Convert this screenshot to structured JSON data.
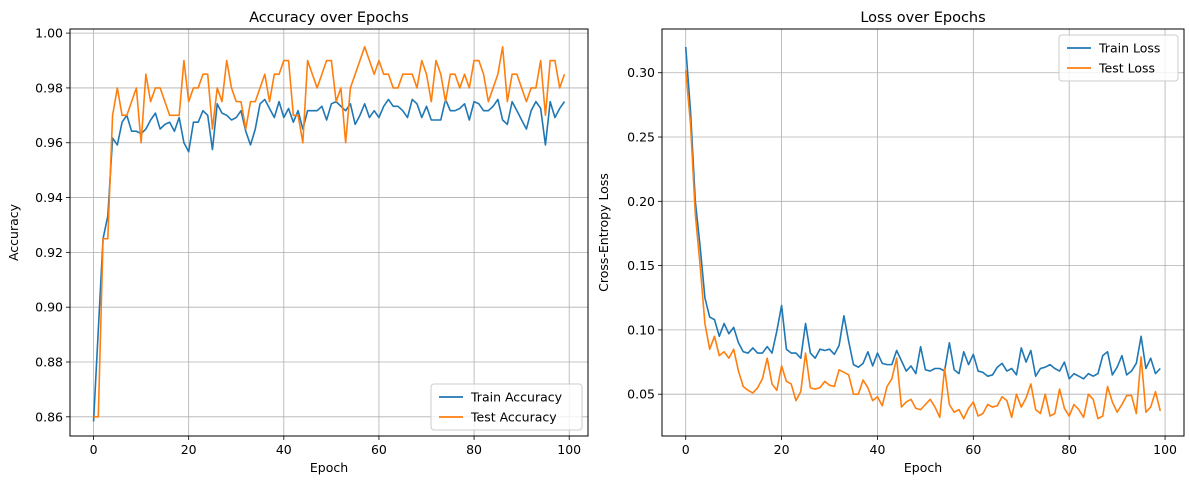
{
  "chart_data": [
    {
      "id": "accuracy",
      "type": "line",
      "title": "Accuracy over Epochs",
      "xlabel": "Epoch",
      "ylabel": "Accuracy",
      "xlim": [
        -4.95,
        103.95
      ],
      "ylim": [
        0.853,
        1.0015
      ],
      "xticks": [
        0,
        20,
        40,
        60,
        80,
        100
      ],
      "yticks": [
        0.86,
        0.88,
        0.9,
        0.92,
        0.94,
        0.96,
        0.98,
        1.0
      ],
      "ytick_labels": [
        "0.86",
        "0.88",
        "0.90",
        "0.92",
        "0.94",
        "0.96",
        "0.98",
        "1.00"
      ],
      "grid": true,
      "legend_position": "lower-right",
      "series": [
        {
          "name": "Train Accuracy",
          "color": "#1f77b4",
          "values": [
            0.8583,
            0.8917,
            0.925,
            0.9333,
            0.9617,
            0.9592,
            0.9675,
            0.97,
            0.9642,
            0.9642,
            0.9633,
            0.965,
            0.9683,
            0.9708,
            0.965,
            0.9667,
            0.9675,
            0.9642,
            0.9692,
            0.96,
            0.9567,
            0.9675,
            0.9675,
            0.9717,
            0.97,
            0.9575,
            0.9742,
            0.9708,
            0.97,
            0.9683,
            0.9692,
            0.9717,
            0.9642,
            0.9592,
            0.965,
            0.9742,
            0.9758,
            0.9725,
            0.9692,
            0.975,
            0.9692,
            0.9725,
            0.9675,
            0.9717,
            0.965,
            0.9717,
            0.9717,
            0.9717,
            0.9733,
            0.9683,
            0.9742,
            0.975,
            0.9733,
            0.9717,
            0.9742,
            0.9667,
            0.97,
            0.9742,
            0.9692,
            0.9717,
            0.9692,
            0.9733,
            0.9758,
            0.9733,
            0.9733,
            0.9717,
            0.9692,
            0.9758,
            0.9742,
            0.9692,
            0.9733,
            0.9683,
            0.9683,
            0.9683,
            0.9758,
            0.9717,
            0.9717,
            0.9725,
            0.9742,
            0.9683,
            0.975,
            0.9742,
            0.9717,
            0.9717,
            0.9733,
            0.9758,
            0.9683,
            0.9667,
            0.975,
            0.9717,
            0.9683,
            0.965,
            0.9717,
            0.975,
            0.9725,
            0.9592,
            0.975,
            0.9692,
            0.9725,
            0.975
          ]
        },
        {
          "name": "Test Accuracy",
          "color": "#ff7f0e",
          "values": [
            0.86,
            0.86,
            0.925,
            0.925,
            0.97,
            0.98,
            0.97,
            0.97,
            0.975,
            0.98,
            0.96,
            0.985,
            0.975,
            0.98,
            0.98,
            0.975,
            0.97,
            0.97,
            0.97,
            0.99,
            0.975,
            0.98,
            0.98,
            0.985,
            0.985,
            0.965,
            0.98,
            0.975,
            0.99,
            0.98,
            0.975,
            0.975,
            0.965,
            0.975,
            0.975,
            0.98,
            0.985,
            0.975,
            0.985,
            0.985,
            0.99,
            0.99,
            0.97,
            0.97,
            0.96,
            0.99,
            0.985,
            0.98,
            0.985,
            0.99,
            0.99,
            0.975,
            0.98,
            0.96,
            0.98,
            0.985,
            0.99,
            0.995,
            0.99,
            0.985,
            0.99,
            0.985,
            0.985,
            0.98,
            0.98,
            0.985,
            0.985,
            0.985,
            0.98,
            0.99,
            0.985,
            0.975,
            0.99,
            0.985,
            0.975,
            0.985,
            0.985,
            0.98,
            0.985,
            0.98,
            0.99,
            0.99,
            0.985,
            0.975,
            0.98,
            0.985,
            0.995,
            0.975,
            0.985,
            0.985,
            0.98,
            0.975,
            0.98,
            0.98,
            0.99,
            0.97,
            0.99,
            0.99,
            0.98,
            0.985
          ]
        }
      ]
    },
    {
      "id": "loss",
      "type": "line",
      "title": "Loss over Epochs",
      "xlabel": "Epoch",
      "ylabel": "Cross-Entropy Loss",
      "xlim": [
        -4.95,
        103.95
      ],
      "ylim": [
        0.0175,
        0.334
      ],
      "xticks": [
        0,
        20,
        40,
        60,
        80,
        100
      ],
      "yticks": [
        0.05,
        0.1,
        0.15,
        0.2,
        0.25,
        0.3
      ],
      "ytick_labels": [
        "0.05",
        "0.10",
        "0.15",
        "0.20",
        "0.25",
        "0.30"
      ],
      "grid": true,
      "legend_position": "upper-right",
      "series": [
        {
          "name": "Train Loss",
          "color": "#1f77b4",
          "values": [
            0.32,
            0.27,
            0.2,
            0.165,
            0.125,
            0.11,
            0.108,
            0.095,
            0.105,
            0.097,
            0.102,
            0.09,
            0.083,
            0.082,
            0.086,
            0.082,
            0.082,
            0.087,
            0.082,
            0.099,
            0.119,
            0.085,
            0.082,
            0.082,
            0.078,
            0.105,
            0.082,
            0.078,
            0.085,
            0.084,
            0.085,
            0.081,
            0.088,
            0.111,
            0.091,
            0.073,
            0.071,
            0.074,
            0.083,
            0.072,
            0.082,
            0.074,
            0.073,
            0.073,
            0.084,
            0.076,
            0.068,
            0.072,
            0.066,
            0.087,
            0.069,
            0.068,
            0.07,
            0.07,
            0.068,
            0.09,
            0.069,
            0.066,
            0.083,
            0.073,
            0.081,
            0.068,
            0.067,
            0.064,
            0.065,
            0.071,
            0.074,
            0.068,
            0.07,
            0.065,
            0.086,
            0.075,
            0.084,
            0.064,
            0.07,
            0.071,
            0.073,
            0.07,
            0.068,
            0.075,
            0.062,
            0.066,
            0.064,
            0.062,
            0.066,
            0.064,
            0.066,
            0.08,
            0.083,
            0.065,
            0.071,
            0.08,
            0.065,
            0.068,
            0.074,
            0.095,
            0.07,
            0.078,
            0.066,
            0.07
          ]
        },
        {
          "name": "Test Loss",
          "color": "#ff7f0e",
          "values": [
            0.302,
            0.26,
            0.19,
            0.15,
            0.105,
            0.085,
            0.095,
            0.08,
            0.083,
            0.078,
            0.085,
            0.068,
            0.056,
            0.053,
            0.051,
            0.055,
            0.062,
            0.078,
            0.058,
            0.053,
            0.072,
            0.06,
            0.058,
            0.045,
            0.052,
            0.082,
            0.055,
            0.054,
            0.055,
            0.06,
            0.057,
            0.056,
            0.069,
            0.067,
            0.065,
            0.05,
            0.05,
            0.061,
            0.055,
            0.045,
            0.048,
            0.041,
            0.056,
            0.062,
            0.078,
            0.04,
            0.044,
            0.046,
            0.039,
            0.038,
            0.042,
            0.046,
            0.04,
            0.032,
            0.07,
            0.042,
            0.036,
            0.038,
            0.031,
            0.039,
            0.044,
            0.033,
            0.035,
            0.042,
            0.04,
            0.041,
            0.048,
            0.045,
            0.032,
            0.05,
            0.04,
            0.047,
            0.058,
            0.038,
            0.035,
            0.05,
            0.033,
            0.035,
            0.054,
            0.039,
            0.033,
            0.042,
            0.038,
            0.032,
            0.05,
            0.046,
            0.031,
            0.033,
            0.056,
            0.044,
            0.036,
            0.042,
            0.049,
            0.049,
            0.035,
            0.079,
            0.036,
            0.04,
            0.052,
            0.037
          ]
        }
      ]
    }
  ]
}
